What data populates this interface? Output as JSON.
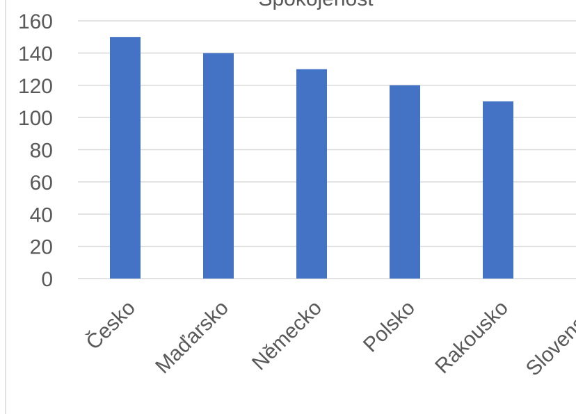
{
  "chart_data": {
    "type": "bar",
    "title": "Spokojenost",
    "categories": [
      "Česko",
      "Maďarsko",
      "Německo",
      "Polsko",
      "Rakousko",
      "Slovensko"
    ],
    "values": [
      150,
      140,
      130,
      120,
      110,
      null
    ],
    "yticks": [
      "0",
      "20",
      "40",
      "60",
      "80",
      "100",
      "120",
      "140",
      "160"
    ],
    "ylim": [
      0,
      160
    ],
    "grid": true,
    "legend": "none",
    "colors": {
      "bar": "#4472c4"
    }
  }
}
